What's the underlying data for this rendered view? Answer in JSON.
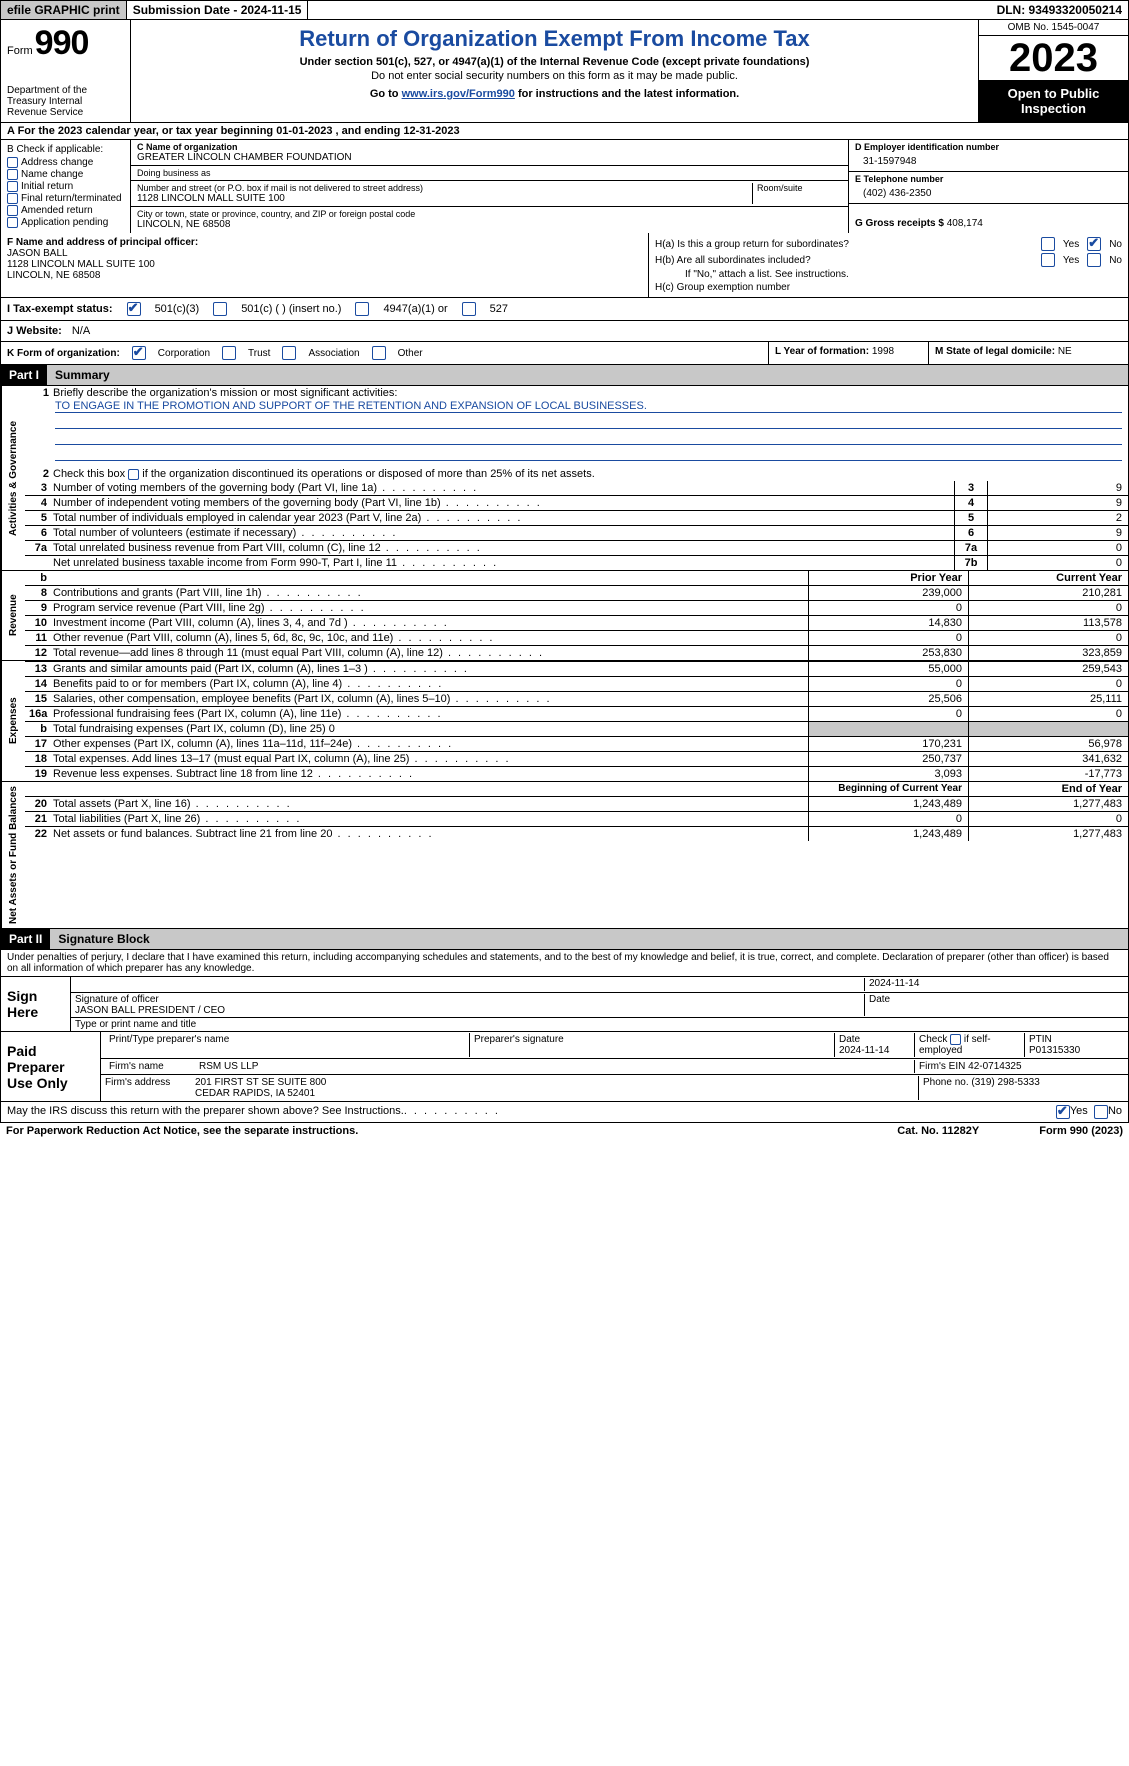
{
  "topbar": {
    "efile": "efile GRAPHIC print",
    "submission_label": "Submission Date - 2024-11-15",
    "dln": "DLN: 93493320050214"
  },
  "header": {
    "form_word": "Form",
    "form_num": "990",
    "dept": "Department of the Treasury Internal Revenue Service",
    "title": "Return of Organization Exempt From Income Tax",
    "sub": "Under section 501(c), 527, or 4947(a)(1) of the Internal Revenue Code (except private foundations)",
    "sub2": "Do not enter social security numbers on this form as it may be made public.",
    "goto_pre": "Go to ",
    "goto_link": "www.irs.gov/Form990",
    "goto_post": " for instructions and the latest information.",
    "omb": "OMB No. 1545-0047",
    "year": "2023",
    "openpub": "Open to Public Inspection"
  },
  "rowA": "A  For the 2023 calendar year, or tax year beginning 01-01-2023   , and ending 12-31-2023",
  "boxB": {
    "label": "B Check if applicable:",
    "opts": [
      "Address change",
      "Name change",
      "Initial return",
      "Final return/terminated",
      "Amended return",
      "Application pending"
    ]
  },
  "boxC": {
    "name_lbl": "C Name of organization",
    "name": "GREATER LINCOLN CHAMBER FOUNDATION",
    "dba_lbl": "Doing business as",
    "dba": "",
    "street_lbl": "Number and street (or P.O. box if mail is not delivered to street address)",
    "room_lbl": "Room/suite",
    "street": "1128 LINCOLN MALL SUITE 100",
    "city_lbl": "City or town, state or province, country, and ZIP or foreign postal code",
    "city": "LINCOLN, NE  68508"
  },
  "boxD": {
    "lbl": "D Employer identification number",
    "val": "31-1597948"
  },
  "boxE": {
    "lbl": "E Telephone number",
    "val": "(402) 436-2350"
  },
  "boxG": {
    "lbl": "G Gross receipts $",
    "val": "408,174"
  },
  "boxF": {
    "lbl": "F  Name and address of principal officer:",
    "name": "JASON BALL",
    "addr1": "1128 LINCOLN MALL SUITE 100",
    "addr2": "LINCOLN, NE  68508"
  },
  "boxH": {
    "a_lbl": "H(a)  Is this a group return for subordinates?",
    "b_lbl": "H(b)  Are all subordinates included?",
    "b_note": "If \"No,\" attach a list. See instructions.",
    "c_lbl": "H(c)  Group exemption number",
    "yes": "Yes",
    "no": "No"
  },
  "boxI": {
    "lbl": "I   Tax-exempt status:",
    "o1": "501(c)(3)",
    "o2": "501(c) (  ) (insert no.)",
    "o3": "4947(a)(1) or",
    "o4": "527"
  },
  "boxJ": {
    "lbl": "J   Website:",
    "val": "N/A"
  },
  "boxK": {
    "lbl": "K Form of organization:",
    "o1": "Corporation",
    "o2": "Trust",
    "o3": "Association",
    "o4": "Other"
  },
  "boxL": {
    "lbl": "L Year of formation:",
    "val": "1998"
  },
  "boxM": {
    "lbl": "M State of legal domicile:",
    "val": "NE"
  },
  "part1": {
    "num": "Part I",
    "title": "Summary"
  },
  "summary": {
    "mission_lbl": "Briefly describe the organization's mission or most significant activities:",
    "mission": "TO ENGAGE IN THE PROMOTION AND SUPPORT OF THE RETENTION AND EXPANSION OF LOCAL BUSINESSES.",
    "line2": "Check this box       if the organization discontinued its operations or disposed of more than 25% of its net assets.",
    "vlabels": {
      "ag": "Activities & Governance",
      "rev": "Revenue",
      "exp": "Expenses",
      "na": "Net Assets or Fund Balances"
    },
    "hdr_prior": "Prior Year",
    "hdr_curr": "Current Year",
    "hdr_begin": "Beginning of Current Year",
    "hdr_end": "End of Year",
    "lines_ag": [
      {
        "n": "3",
        "d": "Number of voting members of the governing body (Part VI, line 1a)",
        "c": "3",
        "v": "9"
      },
      {
        "n": "4",
        "d": "Number of independent voting members of the governing body (Part VI, line 1b)",
        "c": "4",
        "v": "9"
      },
      {
        "n": "5",
        "d": "Total number of individuals employed in calendar year 2023 (Part V, line 2a)",
        "c": "5",
        "v": "2"
      },
      {
        "n": "6",
        "d": "Total number of volunteers (estimate if necessary)",
        "c": "6",
        "v": "9"
      },
      {
        "n": "7a",
        "d": "Total unrelated business revenue from Part VIII, column (C), line 12",
        "c": "7a",
        "v": "0"
      },
      {
        "n": "",
        "d": "Net unrelated business taxable income from Form 990-T, Part I, line 11",
        "c": "7b",
        "v": "0"
      }
    ],
    "lines_rev": [
      {
        "n": "8",
        "d": "Contributions and grants (Part VIII, line 1h)",
        "p": "239,000",
        "c": "210,281"
      },
      {
        "n": "9",
        "d": "Program service revenue (Part VIII, line 2g)",
        "p": "0",
        "c": "0"
      },
      {
        "n": "10",
        "d": "Investment income (Part VIII, column (A), lines 3, 4, and 7d )",
        "p": "14,830",
        "c": "113,578"
      },
      {
        "n": "11",
        "d": "Other revenue (Part VIII, column (A), lines 5, 6d, 8c, 9c, 10c, and 11e)",
        "p": "0",
        "c": "0"
      },
      {
        "n": "12",
        "d": "Total revenue—add lines 8 through 11 (must equal Part VIII, column (A), line 12)",
        "p": "253,830",
        "c": "323,859"
      }
    ],
    "lines_exp": [
      {
        "n": "13",
        "d": "Grants and similar amounts paid (Part IX, column (A), lines 1–3 )",
        "p": "55,000",
        "c": "259,543"
      },
      {
        "n": "14",
        "d": "Benefits paid to or for members (Part IX, column (A), line 4)",
        "p": "0",
        "c": "0"
      },
      {
        "n": "15",
        "d": "Salaries, other compensation, employee benefits (Part IX, column (A), lines 5–10)",
        "p": "25,506",
        "c": "25,111"
      },
      {
        "n": "16a",
        "d": "Professional fundraising fees (Part IX, column (A), line 11e)",
        "p": "0",
        "c": "0"
      },
      {
        "n": "b",
        "d": "Total fundraising expenses (Part IX, column (D), line 25) 0",
        "p": "",
        "c": "",
        "shaded": true
      },
      {
        "n": "17",
        "d": "Other expenses (Part IX, column (A), lines 11a–11d, 11f–24e)",
        "p": "170,231",
        "c": "56,978"
      },
      {
        "n": "18",
        "d": "Total expenses. Add lines 13–17 (must equal Part IX, column (A), line 25)",
        "p": "250,737",
        "c": "341,632"
      },
      {
        "n": "19",
        "d": "Revenue less expenses. Subtract line 18 from line 12",
        "p": "3,093",
        "c": "-17,773"
      }
    ],
    "lines_na": [
      {
        "n": "20",
        "d": "Total assets (Part X, line 16)",
        "p": "1,243,489",
        "c": "1,277,483"
      },
      {
        "n": "21",
        "d": "Total liabilities (Part X, line 26)",
        "p": "0",
        "c": "0"
      },
      {
        "n": "22",
        "d": "Net assets or fund balances. Subtract line 21 from line 20",
        "p": "1,243,489",
        "c": "1,277,483"
      }
    ],
    "b_hdr": "b"
  },
  "part2": {
    "num": "Part II",
    "title": "Signature Block"
  },
  "sig": {
    "perjury": "Under penalties of perjury, I declare that I have examined this return, including accompanying schedules and statements, and to the best of my knowledge and belief, it is true, correct, and complete. Declaration of preparer (other than officer) is based on all information of which preparer has any knowledge.",
    "sign_here": "Sign Here",
    "sig_officer_lbl": "Signature of officer",
    "officer_name": "JASON BALL PRESIDENT / CEO",
    "type_lbl": "Type or print name and title",
    "date_lbl": "Date",
    "date_val": "2024-11-14",
    "paid": "Paid Preparer Use Only",
    "prep_name_lbl": "Print/Type preparer's name",
    "prep_sig_lbl": "Preparer's signature",
    "prep_date_lbl": "Date",
    "prep_date": "2024-11-14",
    "self_lbl": "Check        if self-employed",
    "ptin_lbl": "PTIN",
    "ptin": "P01315330",
    "firm_name_lbl": "Firm's name",
    "firm_name": "RSM US LLP",
    "firm_ein_lbl": "Firm's EIN",
    "firm_ein": "42-0714325",
    "firm_addr_lbl": "Firm's address",
    "firm_addr1": "201 FIRST ST SE SUITE 800",
    "firm_addr2": "CEDAR RAPIDS, IA  52401",
    "phone_lbl": "Phone no.",
    "phone": "(319) 298-5333"
  },
  "discuss": {
    "q": "May the IRS discuss this return with the preparer shown above? See Instructions.",
    "yes": "Yes",
    "no": "No"
  },
  "footer": {
    "pra": "For Paperwork Reduction Act Notice, see the separate instructions.",
    "cat": "Cat. No. 11282Y",
    "form": "Form 990 (2023)"
  }
}
